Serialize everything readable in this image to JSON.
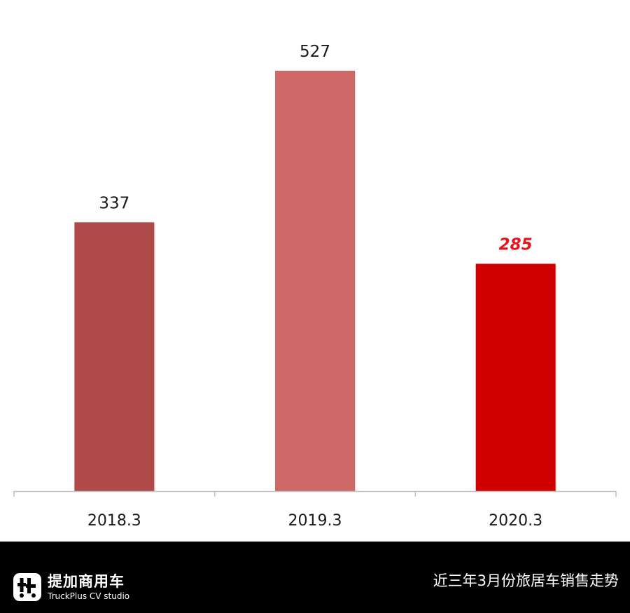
{
  "chart_data": {
    "type": "bar",
    "categories": [
      "2018.3",
      "2019.3",
      "2020.3"
    ],
    "values": [
      337,
      527,
      285
    ],
    "value_labels": [
      "337",
      "527",
      "285"
    ],
    "highlighted_index": 2,
    "bar_colors": [
      "#AE4B4A",
      "#CD6A68",
      "#D10000"
    ],
    "highlight_label_color": "#E8141B",
    "axis_color": "#BFBFBF",
    "title": "",
    "xlabel": "",
    "ylabel": "",
    "ylim": [
      0,
      600
    ],
    "grid": false,
    "legend": "none"
  },
  "footer": {
    "brand_name": "提加商用车",
    "brand_sub": "TruckPlus CV studio",
    "logo_icon": "truckplus-logo-icon",
    "caption": "近三年3月份旅居车销售走势",
    "background": "#000000",
    "text_color": "#FFFFFF"
  }
}
